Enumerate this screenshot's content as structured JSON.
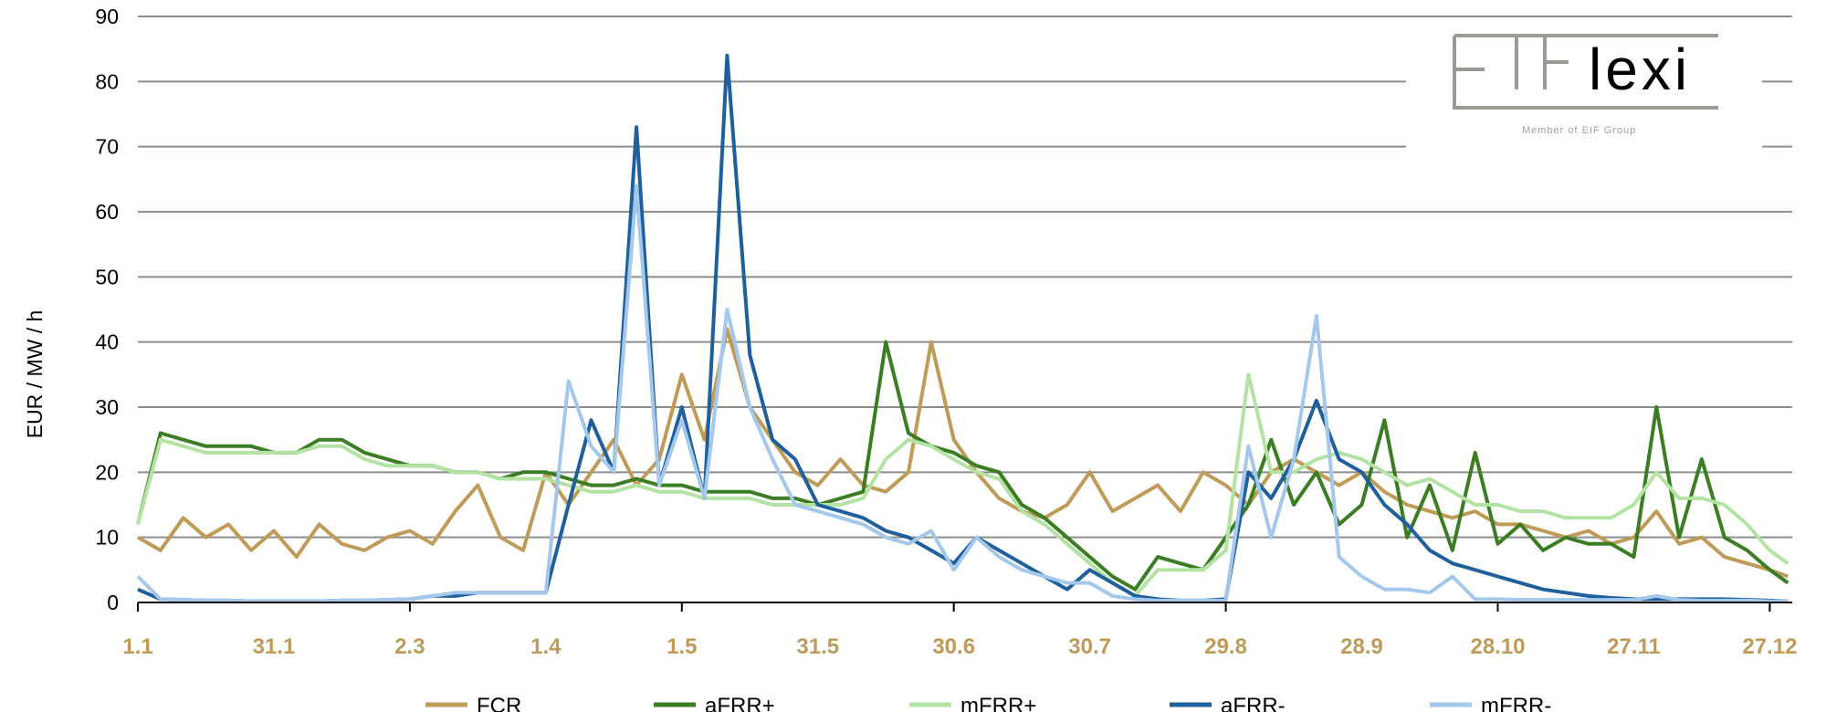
{
  "chart_data": {
    "type": "line",
    "title": "",
    "xlabel": "",
    "ylabel": "EUR / MW / h",
    "ylim": [
      0,
      90
    ],
    "yticks": [
      0,
      10,
      20,
      30,
      40,
      50,
      60,
      70,
      80,
      90
    ],
    "xtick_labels": [
      "1.1",
      "31.1",
      "2.3",
      "1.4",
      "1.5",
      "31.5",
      "30.6",
      "30.7",
      "29.8",
      "28.9",
      "28.10",
      "27.11",
      "27.12"
    ],
    "grid": "horizontal",
    "legend_position": "bottom",
    "x": [
      "1.1",
      "6.1",
      "11.1",
      "16.1",
      "21.1",
      "26.1",
      "31.1",
      "5.2",
      "10.2",
      "15.2",
      "20.2",
      "25.2",
      "2.3",
      "7.3",
      "12.3",
      "17.3",
      "22.3",
      "27.3",
      "1.4",
      "6.4",
      "11.4",
      "16.4",
      "21.4",
      "26.4",
      "1.5",
      "6.5",
      "11.5",
      "16.5",
      "21.5",
      "26.5",
      "31.5",
      "5.6",
      "10.6",
      "15.6",
      "20.6",
      "25.6",
      "30.6",
      "5.7",
      "10.7",
      "15.7",
      "20.7",
      "25.7",
      "30.7",
      "4.8",
      "9.8",
      "14.8",
      "19.8",
      "24.8",
      "29.8",
      "3.9",
      "8.9",
      "13.9",
      "18.9",
      "23.9",
      "28.9",
      "3.10",
      "8.10",
      "13.10",
      "18.10",
      "23.10",
      "28.10",
      "2.11",
      "7.11",
      "12.11",
      "17.11",
      "22.11",
      "27.11",
      "2.12",
      "7.12",
      "12.12",
      "17.12",
      "22.12",
      "27.12",
      "31.12"
    ],
    "series": [
      {
        "name": "FCR",
        "color": "#c09a57",
        "values": [
          10,
          8,
          13,
          10,
          12,
          8,
          11,
          7,
          12,
          9,
          8,
          10,
          11,
          9,
          14,
          18,
          10,
          8,
          20,
          15,
          20,
          25,
          18,
          22,
          35,
          25,
          42,
          30,
          25,
          20,
          18,
          22,
          18,
          17,
          20,
          40,
          25,
          20,
          16,
          14,
          13,
          15,
          20,
          14,
          16,
          18,
          14,
          20,
          18,
          15,
          20,
          22,
          20,
          18,
          20,
          17,
          15,
          14,
          13,
          14,
          12,
          12,
          11,
          10,
          11,
          9,
          10,
          14,
          9,
          10,
          7,
          6,
          5,
          4
        ]
      },
      {
        "name": "aFRR+",
        "color": "#3a7d22",
        "values": [
          12,
          26,
          25,
          24,
          24,
          24,
          23,
          23,
          25,
          25,
          23,
          22,
          21,
          21,
          20,
          20,
          19,
          20,
          20,
          19,
          18,
          18,
          19,
          18,
          18,
          17,
          17,
          17,
          16,
          16,
          15,
          16,
          17,
          40,
          26,
          24,
          23,
          21,
          20,
          15,
          13,
          10,
          7,
          4,
          2,
          7,
          6,
          5,
          10,
          15,
          25,
          15,
          20,
          12,
          15,
          28,
          10,
          18,
          8,
          23,
          9,
          12,
          8,
          10,
          9,
          9,
          7,
          30,
          10,
          22,
          10,
          8,
          5,
          3
        ]
      },
      {
        "name": "mFRR+",
        "color": "#b3e3a3",
        "values": [
          12,
          25,
          24,
          23,
          23,
          23,
          23,
          23,
          24,
          24,
          22,
          21,
          21,
          21,
          20,
          20,
          19,
          19,
          19,
          18,
          17,
          17,
          18,
          17,
          17,
          16,
          16,
          16,
          15,
          15,
          15,
          15,
          16,
          22,
          25,
          24,
          22,
          20,
          19,
          14,
          12,
          9,
          6,
          3,
          1,
          5,
          5,
          5,
          8,
          35,
          20,
          20,
          22,
          23,
          22,
          20,
          18,
          19,
          17,
          15,
          15,
          14,
          14,
          13,
          13,
          13,
          15,
          20,
          16,
          16,
          15,
          12,
          8,
          6
        ]
      },
      {
        "name": "aFRR-",
        "color": "#1f5f9e",
        "values": [
          2,
          0.5,
          0.4,
          0.3,
          0.3,
          0.2,
          0.2,
          0.2,
          0.2,
          0.3,
          0.3,
          0.4,
          0.5,
          1,
          1,
          1.5,
          1.5,
          1.5,
          1.5,
          15,
          28,
          20,
          73,
          18,
          30,
          16,
          84,
          38,
          25,
          22,
          15,
          14,
          13,
          11,
          10,
          8,
          6,
          10,
          8,
          6,
          4,
          2,
          5,
          3,
          1,
          0.5,
          0.3,
          0.3,
          0.5,
          20,
          16,
          22,
          31,
          22,
          20,
          15,
          12,
          8,
          6,
          5,
          4,
          3,
          2,
          1.5,
          1,
          0.7,
          0.5,
          0.5,
          0.5,
          0.5,
          0.5,
          0.4,
          0.3,
          0.2
        ]
      },
      {
        "name": "mFRR-",
        "color": "#a3c8ec",
        "values": [
          4,
          0.5,
          0.4,
          0.3,
          0.3,
          0.2,
          0.2,
          0.2,
          0.2,
          0.3,
          0.3,
          0.4,
          0.5,
          1,
          1.5,
          1.5,
          1.5,
          1.5,
          1.5,
          34,
          24,
          20,
          64,
          18,
          28,
          16,
          45,
          30,
          22,
          15,
          14,
          13,
          12,
          10,
          9,
          11,
          5,
          10,
          7,
          5,
          4,
          3,
          3,
          1,
          0.5,
          0.3,
          0.3,
          0.3,
          0.3,
          24,
          10,
          22,
          44,
          7,
          4,
          2,
          2,
          1.5,
          4,
          0.5,
          0.5,
          0.4,
          0.4,
          0.4,
          0.4,
          0.4,
          0.4,
          1,
          0.4,
          0.3,
          0.3,
          0.3,
          0.2,
          0.2
        ]
      }
    ]
  },
  "logo": {
    "text_grey": "EIF",
    "text_black": "lexi",
    "tagline": "Member of EIF Group"
  }
}
